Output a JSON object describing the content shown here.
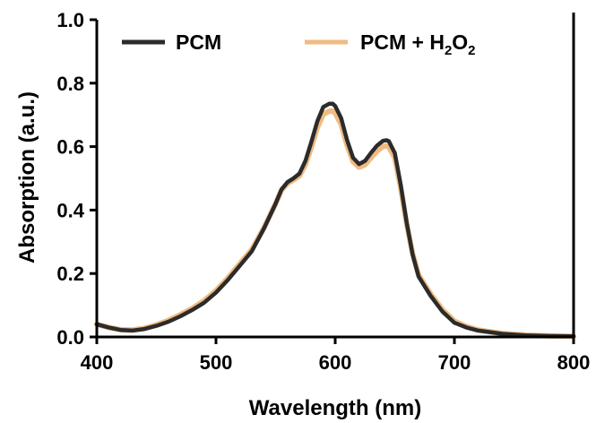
{
  "chart_data": {
    "type": "line",
    "xlabel": "Wavelength (nm)",
    "ylabel": "Absorption (a.u.)",
    "xlim": [
      400,
      800
    ],
    "ylim": [
      0.0,
      1.0
    ],
    "x_ticks": [
      "400",
      "500",
      "600",
      "700",
      "800"
    ],
    "y_ticks": [
      "0.0",
      "0.2",
      "0.4",
      "0.6",
      "0.8",
      "1.0"
    ],
    "grid": false,
    "legend_position": "top",
    "series": [
      {
        "name": "PCM",
        "color": "#2b2b2b",
        "x": [
          400,
          410,
          420,
          430,
          440,
          450,
          460,
          470,
          480,
          490,
          500,
          510,
          520,
          530,
          540,
          550,
          555,
          560,
          565,
          570,
          575,
          580,
          585,
          590,
          595,
          598,
          600,
          605,
          610,
          615,
          620,
          625,
          630,
          635,
          640,
          643,
          645,
          650,
          655,
          660,
          665,
          670,
          680,
          690,
          700,
          710,
          720,
          740,
          760,
          780,
          800
        ],
        "y": [
          0.04,
          0.03,
          0.022,
          0.02,
          0.025,
          0.035,
          0.048,
          0.065,
          0.085,
          0.108,
          0.14,
          0.18,
          0.225,
          0.27,
          0.34,
          0.42,
          0.465,
          0.488,
          0.5,
          0.515,
          0.555,
          0.615,
          0.68,
          0.725,
          0.735,
          0.735,
          0.728,
          0.69,
          0.62,
          0.565,
          0.545,
          0.555,
          0.58,
          0.603,
          0.618,
          0.62,
          0.617,
          0.58,
          0.48,
          0.36,
          0.26,
          0.19,
          0.13,
          0.08,
          0.045,
          0.03,
          0.02,
          0.01,
          0.005,
          0.003,
          0.002
        ]
      },
      {
        "name": "PCM + H2O2",
        "color": "#f0bb82",
        "x": [
          400,
          410,
          420,
          430,
          440,
          450,
          460,
          470,
          480,
          490,
          500,
          510,
          520,
          530,
          540,
          550,
          555,
          560,
          565,
          570,
          575,
          580,
          585,
          590,
          595,
          598,
          600,
          605,
          610,
          615,
          620,
          625,
          630,
          635,
          640,
          643,
          645,
          650,
          655,
          660,
          665,
          670,
          680,
          690,
          700,
          710,
          720,
          740,
          760,
          780,
          800
        ],
        "y": [
          0.04,
          0.03,
          0.023,
          0.022,
          0.027,
          0.038,
          0.052,
          0.07,
          0.09,
          0.114,
          0.146,
          0.186,
          0.231,
          0.275,
          0.342,
          0.42,
          0.463,
          0.484,
          0.495,
          0.508,
          0.543,
          0.598,
          0.66,
          0.702,
          0.712,
          0.712,
          0.706,
          0.67,
          0.604,
          0.553,
          0.535,
          0.543,
          0.565,
          0.586,
          0.6,
          0.602,
          0.599,
          0.565,
          0.47,
          0.355,
          0.262,
          0.195,
          0.136,
          0.086,
          0.05,
          0.033,
          0.022,
          0.011,
          0.006,
          0.003,
          0.002
        ]
      }
    ],
    "legend": {
      "pcm_label": "PCM",
      "mix_prefix": "PCM + H",
      "mix_sub1": "2",
      "mix_mid": "O",
      "mix_sub2": "2"
    }
  }
}
